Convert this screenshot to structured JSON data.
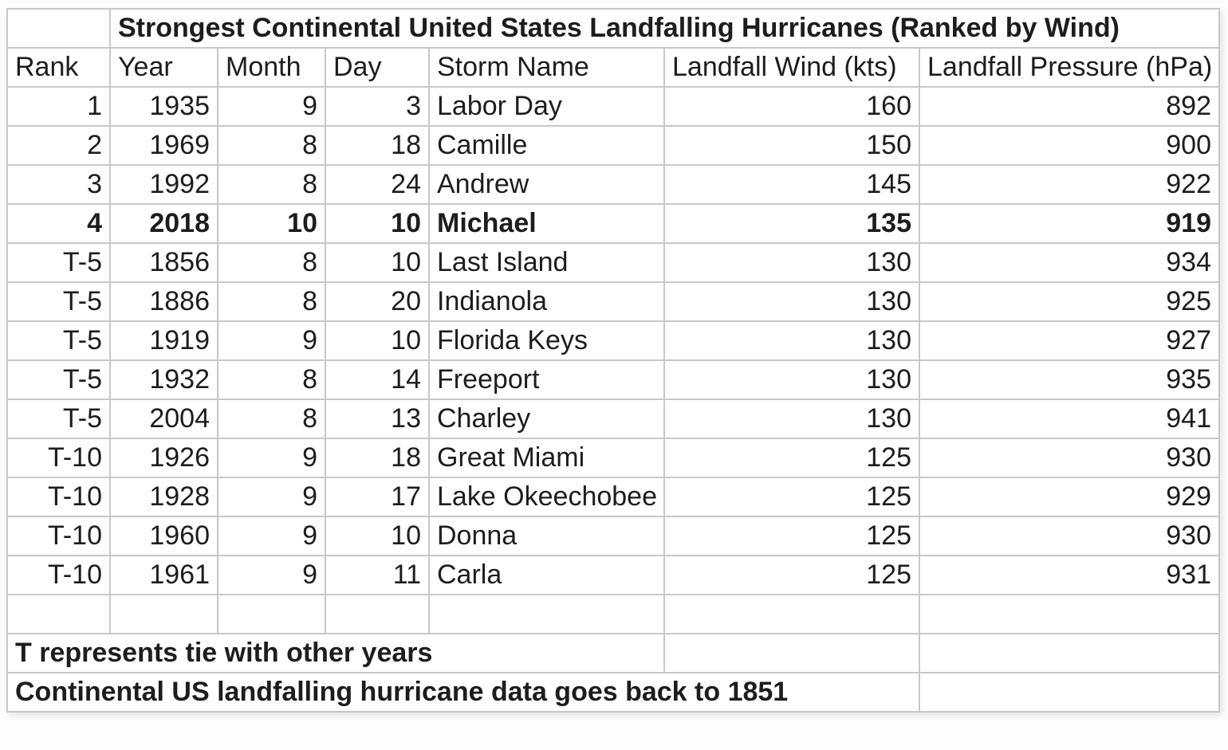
{
  "chart_data": {
    "type": "table",
    "title": "Strongest Continental United States Landfalling Hurricanes (Ranked by Wind)",
    "columns": [
      "Rank",
      "Year",
      "Month",
      "Day",
      "Storm Name",
      "Landfall Wind (kts)",
      "Landfall Pressure (hPa)"
    ],
    "rows": [
      [
        "1",
        "1935",
        "9",
        "3",
        "Labor Day",
        "160",
        "892"
      ],
      [
        "2",
        "1969",
        "8",
        "18",
        "Camille",
        "150",
        "900"
      ],
      [
        "3",
        "1992",
        "8",
        "24",
        "Andrew",
        "145",
        "922"
      ],
      [
        "4",
        "2018",
        "10",
        "10",
        "Michael",
        "135",
        "919"
      ],
      [
        "T-5",
        "1856",
        "8",
        "10",
        "Last Island",
        "130",
        "934"
      ],
      [
        "T-5",
        "1886",
        "8",
        "20",
        "Indianola",
        "130",
        "925"
      ],
      [
        "T-5",
        "1919",
        "9",
        "10",
        "Florida Keys",
        "130",
        "927"
      ],
      [
        "T-5",
        "1932",
        "8",
        "14",
        "Freeport",
        "130",
        "935"
      ],
      [
        "T-5",
        "2004",
        "8",
        "13",
        "Charley",
        "130",
        "941"
      ],
      [
        "T-10",
        "1926",
        "9",
        "18",
        "Great Miami",
        "125",
        "930"
      ],
      [
        "T-10",
        "1928",
        "9",
        "17",
        "Lake Okeechobee",
        "125",
        "929"
      ],
      [
        "T-10",
        "1960",
        "9",
        "10",
        "Donna",
        "125",
        "930"
      ],
      [
        "T-10",
        "1961",
        "9",
        "11",
        "Carla",
        "125",
        "931"
      ]
    ],
    "highlighted_row_index": 3,
    "notes": [
      "T represents tie with other years",
      "Continental US landfalling hurricane data goes back to 1851"
    ]
  },
  "colors": {
    "grid_border": "#c8c8c8",
    "text": "#1d1d1d",
    "cell_background": "#ffffff"
  }
}
